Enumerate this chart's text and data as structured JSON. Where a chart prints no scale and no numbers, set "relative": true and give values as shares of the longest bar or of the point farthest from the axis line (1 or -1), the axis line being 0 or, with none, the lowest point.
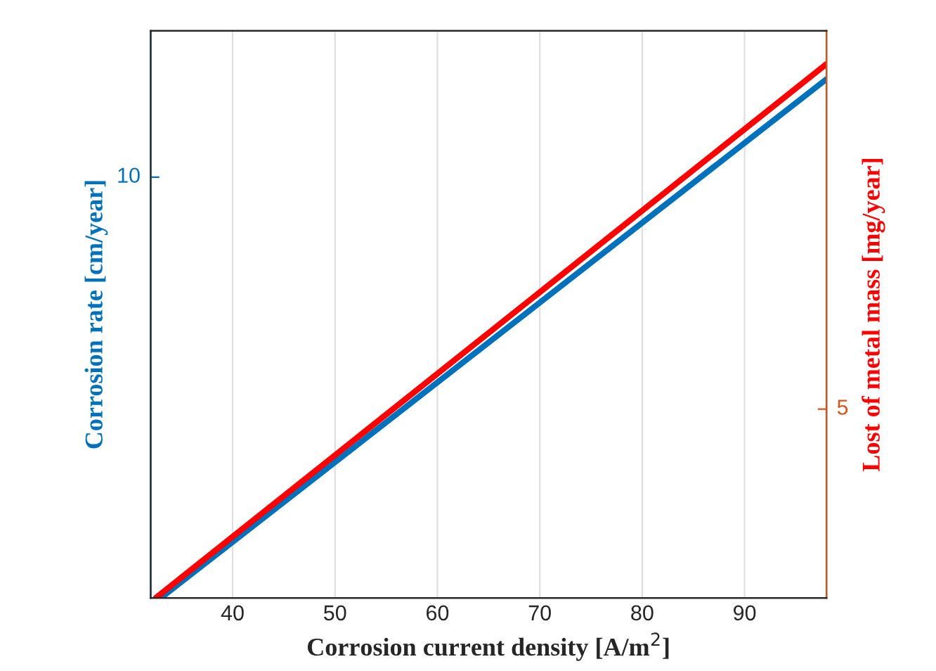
{
  "chart_data": {
    "type": "line",
    "relative": true,
    "xlabel": "Corrosion current density [A/m$^{2}$]",
    "ylabel": "Corrosion rate [cm/year]",
    "y2label": "Lost of metal mass [mg/year]",
    "xlim": [
      32,
      98
    ],
    "xticks": [
      40,
      50,
      60,
      70,
      80,
      90
    ],
    "series": [
      {
        "color": "#0072bd",
        "x": [
          33,
          98
        ],
        "values": [
          0,
          1
        ]
      },
      {
        "color": "#ff0000",
        "x": [
          32.5,
          98
        ],
        "values": [
          0,
          1
        ],
        "axis": "y2"
      }
    ],
    "annotations": [
      "10",
      "5"
    ],
    "grid": true,
    "line_style": "solid",
    "marker": "none"
  }
}
